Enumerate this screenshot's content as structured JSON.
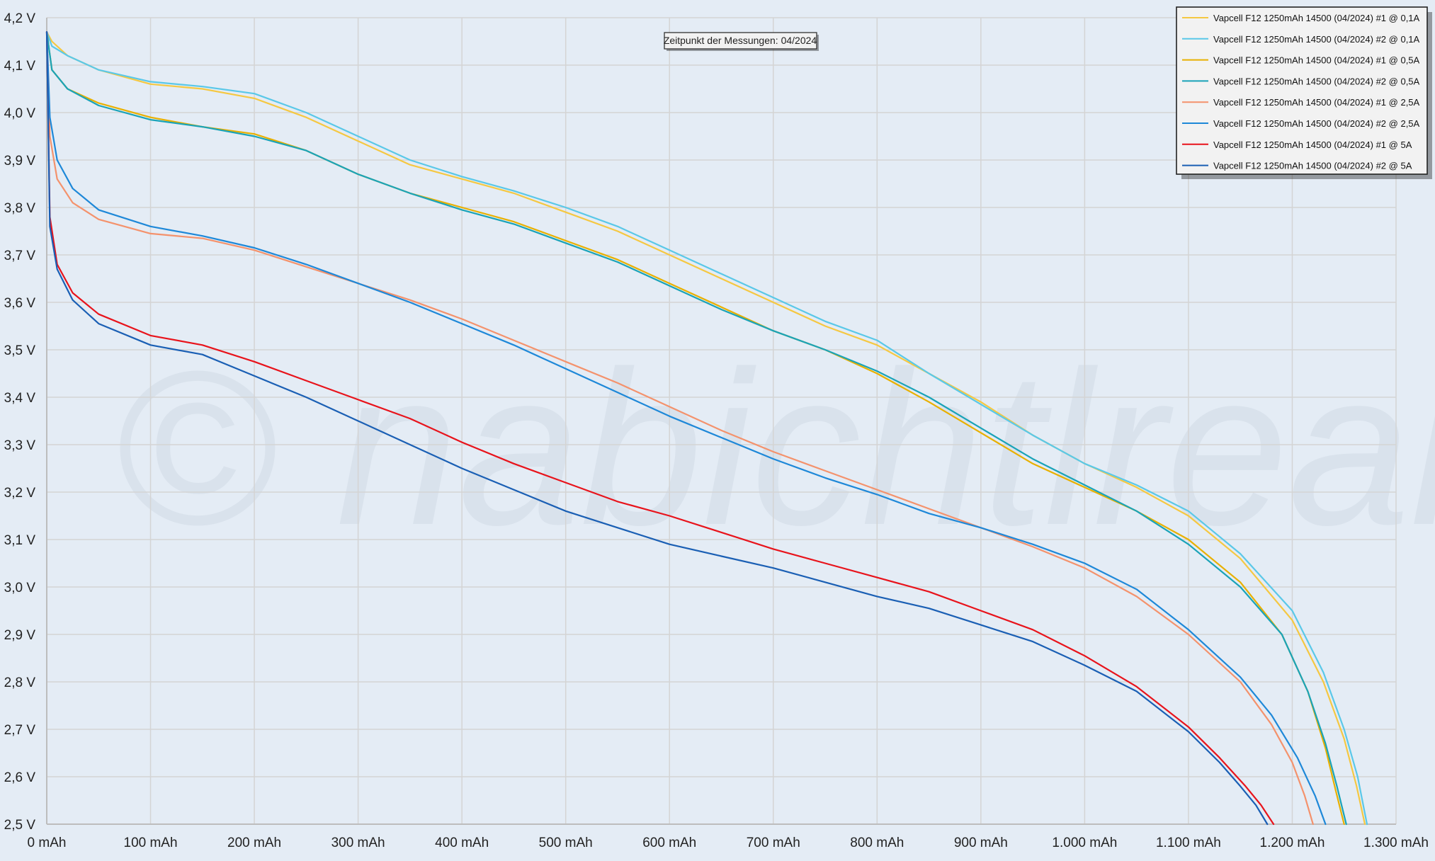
{
  "chart_data": {
    "type": "line",
    "title": "",
    "xlabel": "",
    "ylabel": "",
    "xlim": [
      0,
      1300
    ],
    "ylim": [
      2.5,
      4.2
    ],
    "grid": true,
    "legend_position": "top-right",
    "x_ticks": [
      0,
      100,
      200,
      300,
      400,
      500,
      600,
      700,
      800,
      900,
      1000,
      1100,
      1200,
      1300
    ],
    "x_tick_labels": [
      "0 mAh",
      "100 mAh",
      "200 mAh",
      "300 mAh",
      "400 mAh",
      "500 mAh",
      "600 mAh",
      "700 mAh",
      "800 mAh",
      "900 mAh",
      "1.000 mAh",
      "1.100 mAh",
      "1.200 mAh",
      "1.300 mAh"
    ],
    "y_ticks": [
      2.5,
      2.6,
      2.7,
      2.8,
      2.9,
      3.0,
      3.1,
      3.2,
      3.3,
      3.4,
      3.5,
      3.6,
      3.7,
      3.8,
      3.9,
      4.0,
      4.1,
      4.2
    ],
    "y_tick_labels": [
      "2,5 V",
      "2,6 V",
      "2,7 V",
      "2,8 V",
      "2,9 V",
      "3,0 V",
      "3,1 V",
      "3,2 V",
      "3,3 V",
      "3,4 V",
      "3,5 V",
      "3,6 V",
      "3,7 V",
      "3,8 V",
      "3,9 V",
      "4,0 V",
      "4,1 V",
      "4,2 V"
    ],
    "annotation": "Zeitpunkt der Messungen: 04/2024",
    "watermark": "© nabichtlreak",
    "series": [
      {
        "name": "Vapcell F12 1250mAh 14500 (04/2024) #1 @ 0,1A",
        "color": "#f5c842",
        "points": [
          [
            0,
            4.17
          ],
          [
            5,
            4.15
          ],
          [
            20,
            4.12
          ],
          [
            50,
            4.09
          ],
          [
            100,
            4.06
          ],
          [
            150,
            4.05
          ],
          [
            200,
            4.03
          ],
          [
            250,
            3.99
          ],
          [
            300,
            3.94
          ],
          [
            350,
            3.89
          ],
          [
            400,
            3.86
          ],
          [
            450,
            3.83
          ],
          [
            500,
            3.79
          ],
          [
            550,
            3.75
          ],
          [
            600,
            3.7
          ],
          [
            650,
            3.65
          ],
          [
            700,
            3.6
          ],
          [
            750,
            3.55
          ],
          [
            800,
            3.51
          ],
          [
            850,
            3.45
          ],
          [
            900,
            3.39
          ],
          [
            950,
            3.32
          ],
          [
            1000,
            3.26
          ],
          [
            1050,
            3.21
          ],
          [
            1100,
            3.15
          ],
          [
            1150,
            3.06
          ],
          [
            1200,
            2.93
          ],
          [
            1230,
            2.8
          ],
          [
            1250,
            2.68
          ],
          [
            1262,
            2.58
          ],
          [
            1270,
            2.5
          ]
        ]
      },
      {
        "name": "Vapcell F12 1250mAh 14500 (04/2024) #2 @ 0,1A",
        "color": "#5ac8e8",
        "points": [
          [
            0,
            4.17
          ],
          [
            5,
            4.14
          ],
          [
            20,
            4.12
          ],
          [
            50,
            4.09
          ],
          [
            100,
            4.065
          ],
          [
            150,
            4.055
          ],
          [
            200,
            4.04
          ],
          [
            250,
            4.0
          ],
          [
            300,
            3.95
          ],
          [
            350,
            3.9
          ],
          [
            400,
            3.865
          ],
          [
            450,
            3.835
          ],
          [
            500,
            3.8
          ],
          [
            550,
            3.76
          ],
          [
            600,
            3.71
          ],
          [
            650,
            3.66
          ],
          [
            700,
            3.61
          ],
          [
            750,
            3.56
          ],
          [
            800,
            3.52
          ],
          [
            850,
            3.45
          ],
          [
            900,
            3.385
          ],
          [
            950,
            3.32
          ],
          [
            1000,
            3.26
          ],
          [
            1050,
            3.215
          ],
          [
            1100,
            3.16
          ],
          [
            1150,
            3.07
          ],
          [
            1200,
            2.95
          ],
          [
            1230,
            2.82
          ],
          [
            1250,
            2.7
          ],
          [
            1263,
            2.6
          ],
          [
            1272,
            2.5
          ]
        ]
      },
      {
        "name": "Vapcell F12 1250mAh 14500 (04/2024) #1 @ 0,5A",
        "color": "#e8b000",
        "points": [
          [
            0,
            4.17
          ],
          [
            5,
            4.09
          ],
          [
            20,
            4.05
          ],
          [
            50,
            4.02
          ],
          [
            100,
            3.99
          ],
          [
            150,
            3.97
          ],
          [
            200,
            3.955
          ],
          [
            250,
            3.92
          ],
          [
            300,
            3.87
          ],
          [
            350,
            3.83
          ],
          [
            400,
            3.8
          ],
          [
            450,
            3.77
          ],
          [
            500,
            3.73
          ],
          [
            550,
            3.69
          ],
          [
            600,
            3.64
          ],
          [
            650,
            3.59
          ],
          [
            700,
            3.54
          ],
          [
            750,
            3.5
          ],
          [
            800,
            3.45
          ],
          [
            850,
            3.39
          ],
          [
            900,
            3.325
          ],
          [
            950,
            3.26
          ],
          [
            1000,
            3.21
          ],
          [
            1050,
            3.16
          ],
          [
            1100,
            3.1
          ],
          [
            1150,
            3.01
          ],
          [
            1190,
            2.9
          ],
          [
            1215,
            2.78
          ],
          [
            1232,
            2.66
          ],
          [
            1242,
            2.57
          ],
          [
            1250,
            2.5
          ]
        ]
      },
      {
        "name": "Vapcell F12 1250mAh 14500 (04/2024) #2 @ 0,5A",
        "color": "#1aa3b8",
        "points": [
          [
            0,
            4.17
          ],
          [
            5,
            4.09
          ],
          [
            20,
            4.05
          ],
          [
            50,
            4.015
          ],
          [
            100,
            3.985
          ],
          [
            150,
            3.97
          ],
          [
            200,
            3.95
          ],
          [
            250,
            3.92
          ],
          [
            300,
            3.87
          ],
          [
            350,
            3.83
          ],
          [
            400,
            3.795
          ],
          [
            450,
            3.765
          ],
          [
            500,
            3.725
          ],
          [
            550,
            3.685
          ],
          [
            600,
            3.635
          ],
          [
            650,
            3.585
          ],
          [
            700,
            3.54
          ],
          [
            750,
            3.5
          ],
          [
            800,
            3.455
          ],
          [
            850,
            3.4
          ],
          [
            900,
            3.335
          ],
          [
            950,
            3.27
          ],
          [
            1000,
            3.215
          ],
          [
            1050,
            3.16
          ],
          [
            1100,
            3.09
          ],
          [
            1150,
            3.0
          ],
          [
            1190,
            2.9
          ],
          [
            1215,
            2.78
          ],
          [
            1232,
            2.67
          ],
          [
            1243,
            2.58
          ],
          [
            1252,
            2.5
          ]
        ]
      },
      {
        "name": "Vapcell F12 1250mAh 14500 (04/2024) #1 @ 2,5A",
        "color": "#f4926c",
        "points": [
          [
            0,
            4.17
          ],
          [
            3,
            3.95
          ],
          [
            10,
            3.86
          ],
          [
            25,
            3.81
          ],
          [
            50,
            3.775
          ],
          [
            100,
            3.745
          ],
          [
            150,
            3.735
          ],
          [
            200,
            3.71
          ],
          [
            250,
            3.675
          ],
          [
            300,
            3.64
          ],
          [
            350,
            3.605
          ],
          [
            400,
            3.565
          ],
          [
            450,
            3.52
          ],
          [
            500,
            3.475
          ],
          [
            550,
            3.43
          ],
          [
            600,
            3.38
          ],
          [
            650,
            3.33
          ],
          [
            700,
            3.285
          ],
          [
            750,
            3.245
          ],
          [
            800,
            3.205
          ],
          [
            850,
            3.165
          ],
          [
            900,
            3.125
          ],
          [
            950,
            3.085
          ],
          [
            1000,
            3.04
          ],
          [
            1050,
            2.98
          ],
          [
            1100,
            2.9
          ],
          [
            1150,
            2.8
          ],
          [
            1180,
            2.71
          ],
          [
            1200,
            2.63
          ],
          [
            1212,
            2.56
          ],
          [
            1220,
            2.5
          ]
        ]
      },
      {
        "name": "Vapcell F12 1250mAh 14500 (04/2024) #2 @ 2,5A",
        "color": "#1e88d8",
        "points": [
          [
            0,
            4.17
          ],
          [
            3,
            3.99
          ],
          [
            10,
            3.9
          ],
          [
            25,
            3.84
          ],
          [
            50,
            3.795
          ],
          [
            100,
            3.76
          ],
          [
            150,
            3.74
          ],
          [
            200,
            3.715
          ],
          [
            250,
            3.68
          ],
          [
            300,
            3.64
          ],
          [
            350,
            3.6
          ],
          [
            400,
            3.555
          ],
          [
            450,
            3.51
          ],
          [
            500,
            3.46
          ],
          [
            550,
            3.41
          ],
          [
            600,
            3.36
          ],
          [
            650,
            3.315
          ],
          [
            700,
            3.27
          ],
          [
            750,
            3.23
          ],
          [
            800,
            3.195
          ],
          [
            850,
            3.155
          ],
          [
            900,
            3.125
          ],
          [
            950,
            3.09
          ],
          [
            1000,
            3.05
          ],
          [
            1050,
            2.995
          ],
          [
            1100,
            2.91
          ],
          [
            1150,
            2.81
          ],
          [
            1180,
            2.73
          ],
          [
            1205,
            2.64
          ],
          [
            1222,
            2.56
          ],
          [
            1232,
            2.5
          ]
        ]
      },
      {
        "name": "Vapcell F12 1250mAh 14500 (04/2024) #1 @ 5A",
        "color": "#e8131b",
        "points": [
          [
            0,
            4.17
          ],
          [
            3,
            3.78
          ],
          [
            10,
            3.68
          ],
          [
            25,
            3.62
          ],
          [
            50,
            3.575
          ],
          [
            100,
            3.53
          ],
          [
            150,
            3.51
          ],
          [
            200,
            3.475
          ],
          [
            250,
            3.435
          ],
          [
            300,
            3.395
          ],
          [
            350,
            3.355
          ],
          [
            400,
            3.305
          ],
          [
            450,
            3.26
          ],
          [
            500,
            3.22
          ],
          [
            550,
            3.18
          ],
          [
            600,
            3.15
          ],
          [
            650,
            3.115
          ],
          [
            700,
            3.08
          ],
          [
            750,
            3.05
          ],
          [
            800,
            3.02
          ],
          [
            850,
            2.99
          ],
          [
            900,
            2.95
          ],
          [
            950,
            2.91
          ],
          [
            1000,
            2.855
          ],
          [
            1050,
            2.79
          ],
          [
            1100,
            2.705
          ],
          [
            1130,
            2.64
          ],
          [
            1155,
            2.58
          ],
          [
            1170,
            2.54
          ],
          [
            1182,
            2.5
          ]
        ]
      },
      {
        "name": "Vapcell F12 1250mAh 14500 (04/2024) #2 @ 5A",
        "color": "#1a5fb4",
        "points": [
          [
            0,
            4.17
          ],
          [
            3,
            3.76
          ],
          [
            10,
            3.67
          ],
          [
            25,
            3.605
          ],
          [
            50,
            3.555
          ],
          [
            100,
            3.51
          ],
          [
            150,
            3.49
          ],
          [
            200,
            3.445
          ],
          [
            250,
            3.4
          ],
          [
            300,
            3.35
          ],
          [
            350,
            3.3
          ],
          [
            400,
            3.25
          ],
          [
            450,
            3.205
          ],
          [
            500,
            3.16
          ],
          [
            550,
            3.125
          ],
          [
            600,
            3.09
          ],
          [
            650,
            3.065
          ],
          [
            700,
            3.04
          ],
          [
            750,
            3.01
          ],
          [
            800,
            2.98
          ],
          [
            850,
            2.955
          ],
          [
            900,
            2.92
          ],
          [
            950,
            2.885
          ],
          [
            1000,
            2.835
          ],
          [
            1050,
            2.78
          ],
          [
            1100,
            2.695
          ],
          [
            1130,
            2.63
          ],
          [
            1150,
            2.58
          ],
          [
            1165,
            2.54
          ],
          [
            1176,
            2.5
          ]
        ]
      }
    ]
  }
}
